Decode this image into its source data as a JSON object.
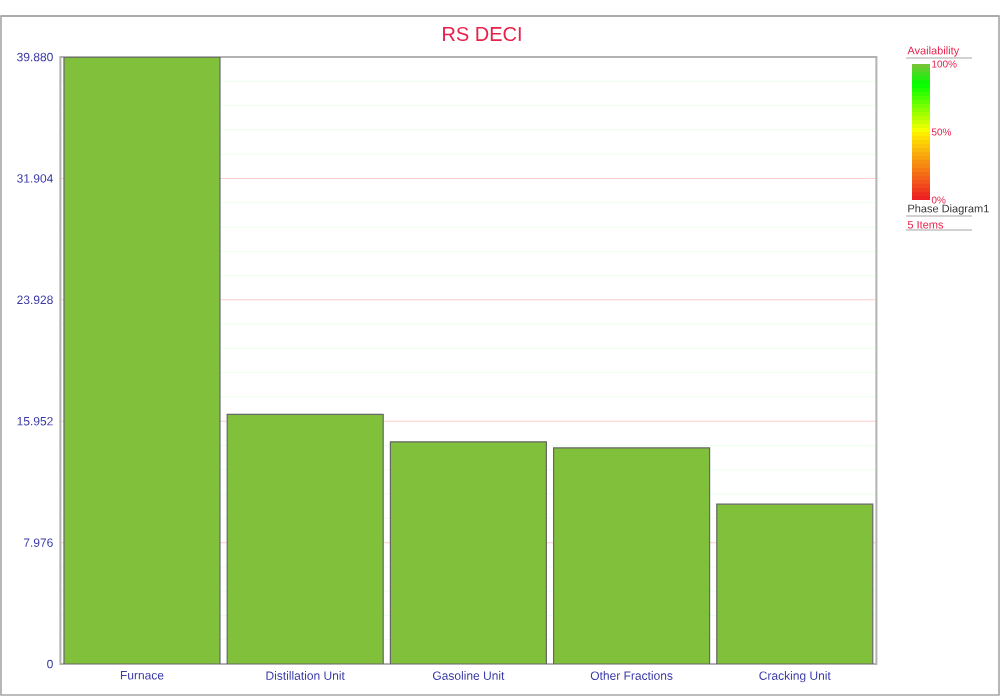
{
  "chart_data": {
    "type": "bar",
    "title": "RS DECI",
    "categories": [
      "Furnace",
      "Distillation Unit",
      "Gasoline Unit",
      "Other Fractions",
      "Cracking Unit"
    ],
    "values": [
      39.88,
      16.4,
      14.6,
      14.2,
      10.5
    ],
    "color": "#80c03a",
    "ylim": [
      0,
      39.88
    ],
    "yticks": [
      {
        "value": 0,
        "label": "0"
      },
      {
        "value": 7.976,
        "label": "7.976"
      },
      {
        "value": 15.952,
        "label": "15.952"
      },
      {
        "value": 23.928,
        "label": "23.928"
      },
      {
        "value": 31.904,
        "label": "31.904"
      },
      {
        "value": 39.88,
        "label": "39.880"
      }
    ],
    "grid": "y",
    "clabel": "Availability",
    "clim": [
      0,
      100
    ],
    "cticks": [
      {
        "value": 0,
        "label": "0%"
      },
      {
        "value": 50,
        "label": "50%"
      },
      {
        "value": 100,
        "label": "100%"
      }
    ],
    "annotations": [
      "Phase Diagram1",
      "5 Items"
    ]
  }
}
